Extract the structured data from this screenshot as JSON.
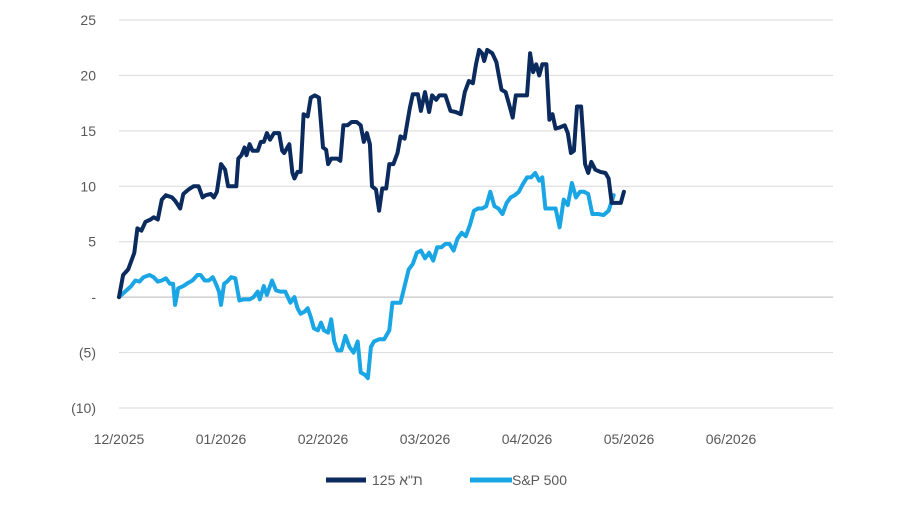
{
  "chart_data": {
    "type": "line",
    "title": "",
    "xlabel": "",
    "ylabel": "",
    "xlim": [
      0,
      7
    ],
    "ylim": [
      -10,
      25
    ],
    "grid": true,
    "legend_position": "bottom-center",
    "x_tick_labels": [
      "12/2025",
      "01/2026",
      "02/2026",
      "03/2026",
      "04/2026",
      "05/2026",
      "06/2026"
    ],
    "y_ticks": [
      25,
      20,
      15,
      10,
      5,
      0,
      -5,
      -10
    ],
    "y_tick_labels": [
      "25",
      "20",
      "15",
      "10",
      "5",
      "-",
      "(5)",
      "(10)"
    ],
    "series": [
      {
        "name": "ת\"א 125",
        "color": "#0b2a5e",
        "points": [
          [
            0.0,
            0
          ],
          [
            0.04,
            2
          ],
          [
            0.09,
            2.5
          ],
          [
            0.15,
            4
          ],
          [
            0.18,
            6.2
          ],
          [
            0.22,
            6
          ],
          [
            0.26,
            6.8
          ],
          [
            0.31,
            7
          ],
          [
            0.34,
            7.2
          ],
          [
            0.38,
            7
          ],
          [
            0.42,
            8.8
          ],
          [
            0.46,
            9.2
          ],
          [
            0.52,
            9
          ],
          [
            0.55,
            8.7
          ],
          [
            0.6,
            8
          ],
          [
            0.63,
            9.3
          ],
          [
            0.68,
            9.7
          ],
          [
            0.73,
            10
          ],
          [
            0.78,
            10
          ],
          [
            0.82,
            9
          ],
          [
            0.85,
            9.2
          ],
          [
            0.9,
            9.3
          ],
          [
            0.93,
            9
          ],
          [
            0.96,
            9.5
          ],
          [
            1.0,
            12
          ],
          [
            1.04,
            11.5
          ],
          [
            1.07,
            10
          ],
          [
            1.12,
            10
          ],
          [
            1.15,
            10
          ],
          [
            1.17,
            12.5
          ],
          [
            1.2,
            12.8
          ],
          [
            1.23,
            13.5
          ],
          [
            1.25,
            12.8
          ],
          [
            1.28,
            13.8
          ],
          [
            1.31,
            13.2
          ],
          [
            1.36,
            13.2
          ],
          [
            1.39,
            14
          ],
          [
            1.42,
            14
          ],
          [
            1.45,
            14.8
          ],
          [
            1.48,
            14.2
          ],
          [
            1.52,
            14.8
          ],
          [
            1.57,
            14.8
          ],
          [
            1.6,
            13.2
          ],
          [
            1.62,
            13
          ],
          [
            1.67,
            13.8
          ],
          [
            1.7,
            11.2
          ],
          [
            1.72,
            10.7
          ],
          [
            1.75,
            11.3
          ],
          [
            1.78,
            11.3
          ],
          [
            1.81,
            16.5
          ],
          [
            1.85,
            16.3
          ],
          [
            1.88,
            18
          ],
          [
            1.92,
            18.2
          ],
          [
            1.96,
            18
          ],
          [
            2.0,
            13.5
          ],
          [
            2.03,
            13.3
          ],
          [
            2.05,
            12
          ],
          [
            2.08,
            12.5
          ],
          [
            2.14,
            12.5
          ],
          [
            2.17,
            12.3
          ],
          [
            2.2,
            15.5
          ],
          [
            2.24,
            15.5
          ],
          [
            2.28,
            15.8
          ],
          [
            2.33,
            15.8
          ],
          [
            2.37,
            15.5
          ],
          [
            2.4,
            14
          ],
          [
            2.43,
            14.8
          ],
          [
            2.46,
            13.8
          ],
          [
            2.48,
            10
          ],
          [
            2.52,
            9.7
          ],
          [
            2.55,
            7.8
          ],
          [
            2.58,
            9.8
          ],
          [
            2.62,
            9.8
          ],
          [
            2.65,
            12
          ],
          [
            2.69,
            12
          ],
          [
            2.73,
            13
          ],
          [
            2.76,
            14.5
          ],
          [
            2.8,
            14.3
          ],
          [
            2.85,
            17
          ],
          [
            2.88,
            18.3
          ],
          [
            2.93,
            18.3
          ],
          [
            2.96,
            16.8
          ],
          [
            3.0,
            18.5
          ],
          [
            3.04,
            16.7
          ],
          [
            3.07,
            18.2
          ],
          [
            3.11,
            17.8
          ],
          [
            3.14,
            18.2
          ],
          [
            3.2,
            18.2
          ],
          [
            3.25,
            16.8
          ],
          [
            3.3,
            16.7
          ],
          [
            3.35,
            16.5
          ],
          [
            3.39,
            18.5
          ],
          [
            3.43,
            19.5
          ],
          [
            3.47,
            19.3
          ],
          [
            3.5,
            21
          ],
          [
            3.53,
            22.3
          ],
          [
            3.56,
            22
          ],
          [
            3.58,
            21.3
          ],
          [
            3.61,
            22.3
          ],
          [
            3.66,
            22
          ],
          [
            3.7,
            21.2
          ],
          [
            3.72,
            20.2
          ],
          [
            3.75,
            18.7
          ],
          [
            3.79,
            18.5
          ],
          [
            3.83,
            17.2
          ],
          [
            3.86,
            16.2
          ],
          [
            3.89,
            18.2
          ],
          [
            3.93,
            18.2
          ],
          [
            4.0,
            18.2
          ],
          [
            4.03,
            22
          ],
          [
            4.06,
            20.3
          ],
          [
            4.09,
            21
          ],
          [
            4.12,
            20
          ],
          [
            4.15,
            21
          ],
          [
            4.19,
            21
          ],
          [
            4.22,
            16
          ],
          [
            4.25,
            16.5
          ],
          [
            4.28,
            15.2
          ],
          [
            4.32,
            15.3
          ],
          [
            4.37,
            15.5
          ],
          [
            4.4,
            14.8
          ],
          [
            4.43,
            13
          ],
          [
            4.46,
            13.2
          ],
          [
            4.49,
            17.2
          ],
          [
            4.53,
            17.2
          ],
          [
            4.57,
            12
          ],
          [
            4.6,
            11.2
          ],
          [
            4.63,
            12.2
          ],
          [
            4.67,
            11.5
          ],
          [
            4.72,
            11.3
          ],
          [
            4.77,
            11.2
          ],
          [
            4.8,
            10.7
          ],
          [
            4.83,
            8.5
          ],
          [
            4.87,
            8.5
          ],
          [
            4.92,
            8.5
          ],
          [
            4.95,
            9.5
          ]
        ]
      },
      {
        "name": "S&P 500",
        "color": "#1aa5e5",
        "points": [
          [
            0.0,
            0
          ],
          [
            0.06,
            0.5
          ],
          [
            0.12,
            1
          ],
          [
            0.16,
            1.5
          ],
          [
            0.2,
            1.4
          ],
          [
            0.24,
            1.8
          ],
          [
            0.3,
            2
          ],
          [
            0.34,
            1.8
          ],
          [
            0.38,
            1.4
          ],
          [
            0.42,
            1.5
          ],
          [
            0.46,
            1.7
          ],
          [
            0.5,
            1.2
          ],
          [
            0.53,
            1.2
          ],
          [
            0.55,
            -0.7
          ],
          [
            0.58,
            0.8
          ],
          [
            0.63,
            1
          ],
          [
            0.68,
            1.3
          ],
          [
            0.72,
            1.5
          ],
          [
            0.77,
            2
          ],
          [
            0.8,
            2
          ],
          [
            0.84,
            1.5
          ],
          [
            0.88,
            1.5
          ],
          [
            0.92,
            1.8
          ],
          [
            0.95,
            1.2
          ],
          [
            0.98,
            0.5
          ],
          [
            1.0,
            -0.7
          ],
          [
            1.03,
            1.2
          ],
          [
            1.06,
            1.4
          ],
          [
            1.1,
            1.8
          ],
          [
            1.14,
            1.7
          ],
          [
            1.18,
            -0.3
          ],
          [
            1.22,
            -0.2
          ],
          [
            1.28,
            -0.2
          ],
          [
            1.32,
            0
          ],
          [
            1.36,
            0.5
          ],
          [
            1.38,
            -0.2
          ],
          [
            1.42,
            1
          ],
          [
            1.45,
            0.2
          ],
          [
            1.5,
            1.5
          ],
          [
            1.54,
            0.6
          ],
          [
            1.58,
            0.5
          ],
          [
            1.63,
            0.5
          ],
          [
            1.68,
            -0.5
          ],
          [
            1.72,
            0
          ],
          [
            1.75,
            -1
          ],
          [
            1.78,
            -1.5
          ],
          [
            1.82,
            -1.3
          ],
          [
            1.85,
            -1
          ],
          [
            1.88,
            -1.8
          ],
          [
            1.91,
            -2.8
          ],
          [
            1.95,
            -3
          ],
          [
            1.98,
            -2.3
          ],
          [
            2.01,
            -3
          ],
          [
            2.05,
            -3.2
          ],
          [
            2.08,
            -2
          ],
          [
            2.11,
            -4
          ],
          [
            2.14,
            -4.8
          ],
          [
            2.18,
            -4.8
          ],
          [
            2.22,
            -3.5
          ],
          [
            2.26,
            -4.5
          ],
          [
            2.3,
            -5
          ],
          [
            2.34,
            -4
          ],
          [
            2.37,
            -6.8
          ],
          [
            2.41,
            -7
          ],
          [
            2.44,
            -7.3
          ],
          [
            2.47,
            -4.5
          ],
          [
            2.5,
            -4
          ],
          [
            2.55,
            -3.8
          ],
          [
            2.6,
            -3.8
          ],
          [
            2.65,
            -3
          ],
          [
            2.68,
            -0.5
          ],
          [
            2.72,
            -0.5
          ],
          [
            2.76,
            -0.5
          ],
          [
            2.8,
            1
          ],
          [
            2.84,
            2.5
          ],
          [
            2.88,
            3
          ],
          [
            2.92,
            4
          ],
          [
            2.96,
            4.2
          ],
          [
            3.0,
            3.5
          ],
          [
            3.04,
            4
          ],
          [
            3.08,
            3.3
          ],
          [
            3.12,
            4.5
          ],
          [
            3.16,
            4.5
          ],
          [
            3.2,
            4.8
          ],
          [
            3.24,
            4.8
          ],
          [
            3.28,
            4.2
          ],
          [
            3.32,
            5.3
          ],
          [
            3.36,
            5.8
          ],
          [
            3.4,
            5.5
          ],
          [
            3.44,
            6.5
          ],
          [
            3.48,
            7.8
          ],
          [
            3.52,
            8
          ],
          [
            3.56,
            8
          ],
          [
            3.6,
            8.2
          ],
          [
            3.64,
            9.5
          ],
          [
            3.68,
            8.2
          ],
          [
            3.72,
            8
          ],
          [
            3.76,
            7.5
          ],
          [
            3.8,
            8.5
          ],
          [
            3.84,
            9
          ],
          [
            3.88,
            9.2
          ],
          [
            3.92,
            9.5
          ],
          [
            3.96,
            10.2
          ],
          [
            4.0,
            10.8
          ],
          [
            4.04,
            10.8
          ],
          [
            4.08,
            11.2
          ],
          [
            4.12,
            10.5
          ],
          [
            4.15,
            10.8
          ],
          [
            4.18,
            8
          ],
          [
            4.23,
            8
          ],
          [
            4.28,
            8
          ],
          [
            4.32,
            6.3
          ],
          [
            4.36,
            8.8
          ],
          [
            4.4,
            8.3
          ],
          [
            4.44,
            10.3
          ],
          [
            4.48,
            9
          ],
          [
            4.52,
            9.5
          ],
          [
            4.56,
            9.5
          ],
          [
            4.6,
            9.3
          ],
          [
            4.64,
            7.5
          ],
          [
            4.7,
            7.5
          ],
          [
            4.75,
            7.4
          ],
          [
            4.8,
            7.8
          ],
          [
            4.85,
            9.2
          ]
        ]
      }
    ]
  }
}
